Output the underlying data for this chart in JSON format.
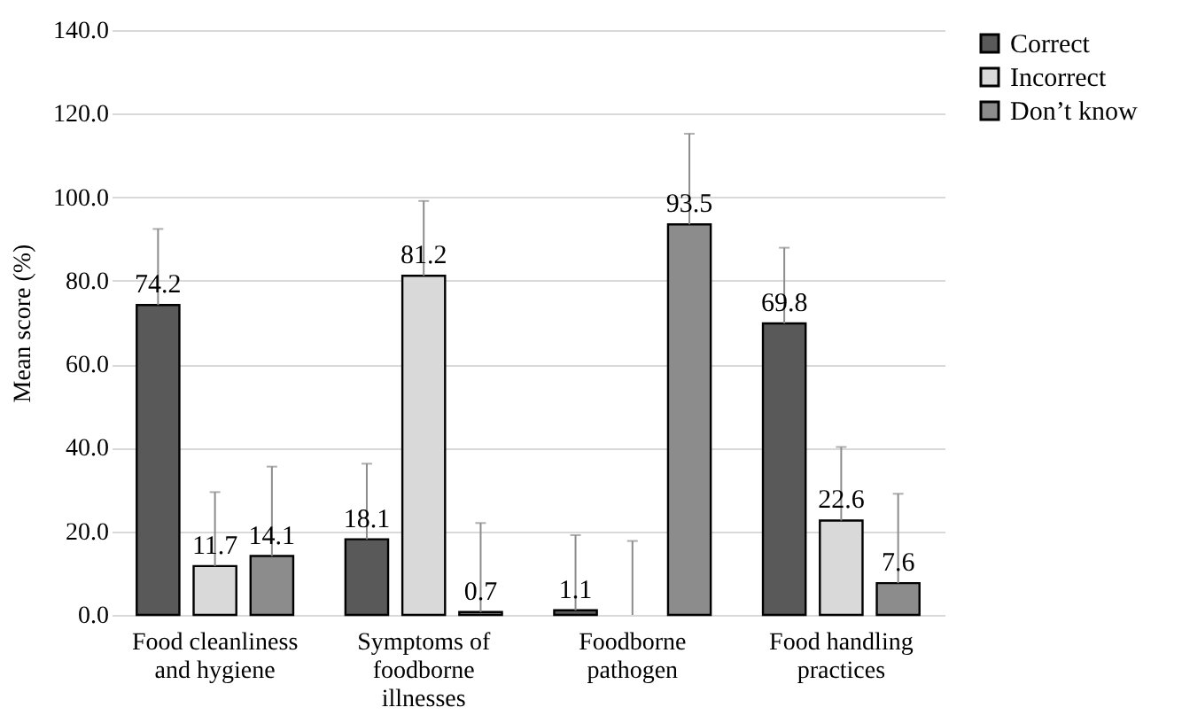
{
  "chart_data": {
    "type": "bar",
    "ylabel": "Mean score (%)",
    "categories": [
      "Food cleanliness and hygiene",
      "Symptoms of foodborne illnesses",
      "Foodborne pathogen",
      "Food handling practices"
    ],
    "series": [
      {
        "name": "Correct",
        "color": "#595959",
        "values": [
          74.2,
          18.1,
          1.1,
          69.8
        ],
        "value_labels": [
          "74.2",
          "18.1",
          "1.1",
          "69.8"
        ],
        "errors": [
          [
            74.2,
            92.4
          ],
          [
            18.1,
            36.2
          ],
          [
            1.1,
            19.1
          ],
          [
            69.8,
            87.9
          ]
        ]
      },
      {
        "name": "Incorrect",
        "color": "#d9d9d9",
        "values": [
          11.7,
          81.2,
          0,
          22.6
        ],
        "value_labels": [
          "11.7",
          "81.2",
          null,
          "22.6"
        ],
        "errors": [
          [
            11.7,
            29.4
          ],
          [
            81.2,
            99.1
          ],
          [
            0,
            17.7
          ],
          [
            22.6,
            40.2
          ]
        ]
      },
      {
        "name": "Don’t know",
        "color": "#8c8c8c",
        "values": [
          14.1,
          0.7,
          93.5,
          7.6
        ],
        "value_labels": [
          "14.1",
          "0.7",
          "93.5",
          "7.6"
        ],
        "errors": [
          [
            14.1,
            35.5
          ],
          [
            0.7,
            22.0
          ],
          [
            93.5,
            115.2
          ],
          [
            7.6,
            29.0
          ]
        ]
      }
    ],
    "ylim": [
      0,
      140
    ],
    "yticks": [
      {
        "value": 0,
        "label": "0.0"
      },
      {
        "value": 20,
        "label": "20.0"
      },
      {
        "value": 40,
        "label": "40.0"
      },
      {
        "value": 60,
        "label": "60.0"
      },
      {
        "value": 80,
        "label": "80.0"
      },
      {
        "value": 100,
        "label": "100.0"
      },
      {
        "value": 120,
        "label": "120.0"
      },
      {
        "value": 140,
        "label": "140.0"
      }
    ],
    "grid": "y",
    "legend": "right"
  }
}
